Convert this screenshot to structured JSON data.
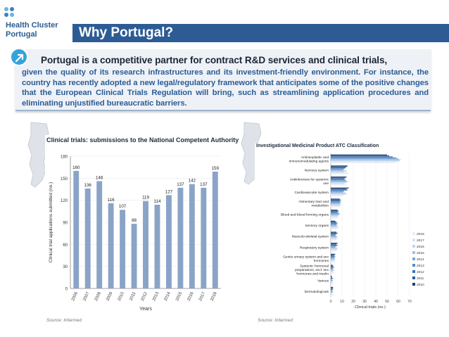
{
  "logo": {
    "line1": "Health Cluster",
    "line2": "Portugal"
  },
  "header": {
    "title": "Why Portugal?"
  },
  "intro": {
    "lead": "Portugal is a competitive partner for contract R&D services and clinical trials,",
    "body": "given the quality of its research infrastructures and its investment-friendly environment. For instance, the country has recently adopted a new legal/regulatory framework that anticipates some of the positive changes that the European Clinical Trials Regulation will bring, such as streamlining application procedures and eliminating unjustified bureaucratic barriers."
  },
  "colors": {
    "brand": "#2d5c94",
    "bar": "#8aa4c8",
    "accent": "#35a3d9"
  },
  "chart_data": [
    {
      "type": "bar",
      "title": "Clinical trials: submissions to the National Competent Authority",
      "xlabel": "Years",
      "ylabel": "Clinical trial applications submitted (no.)",
      "categories": [
        "2006",
        "2007",
        "2008",
        "2009",
        "2010",
        "2011",
        "2012",
        "2013",
        "2014",
        "2015",
        "2016",
        "2017",
        "2018"
      ],
      "values": [
        160,
        136,
        146,
        116,
        107,
        88,
        119,
        114,
        127,
        137,
        142,
        137,
        159
      ],
      "ylim": [
        0,
        180
      ],
      "yticks": [
        0,
        30,
        60,
        90,
        120,
        150,
        180
      ],
      "source": "Source: Infarmed"
    },
    {
      "type": "bar",
      "orientation": "horizontal",
      "title": "Investigational Medicinal Product ATC Classification",
      "xlabel": "Clinical trials (no.)",
      "categories": [
        "Antineoplastic and immunomodulating agents",
        "Nervous system",
        "Antiinfectives for systemic use",
        "Cardiovascular system",
        "Alimentary tract and metabolism",
        "Blood and blood forming organs",
        "Sensory organs",
        "Musculo-skeletal system",
        "Respiratory system",
        "Genito urinary system and sex hormones",
        "Systemic hormonal preparations, excl. sex hormones and insulin",
        "Various",
        "Dermatologicals"
      ],
      "series": [
        {
          "name": "2010",
          "values": [
            50,
            15,
            14,
            16,
            8,
            6,
            4,
            5,
            6,
            4,
            2,
            1,
            2
          ]
        },
        {
          "name": "2011",
          "values": [
            52,
            14,
            13,
            14,
            9,
            7,
            5,
            6,
            5,
            3,
            2,
            1,
            2
          ]
        },
        {
          "name": "2012",
          "values": [
            55,
            13,
            12,
            15,
            8,
            6,
            6,
            5,
            6,
            4,
            3,
            2,
            2
          ]
        },
        {
          "name": "2013",
          "values": [
            58,
            12,
            13,
            12,
            9,
            7,
            5,
            4,
            5,
            3,
            2,
            1,
            1
          ]
        },
        {
          "name": "2014",
          "values": [
            60,
            11,
            14,
            11,
            8,
            8,
            6,
            5,
            4,
            4,
            2,
            2,
            2
          ]
        },
        {
          "name": "2015",
          "values": [
            62,
            14,
            15,
            13,
            9,
            7,
            5,
            6,
            6,
            3,
            3,
            1,
            2
          ]
        },
        {
          "name": "2016",
          "values": [
            61,
            12,
            13,
            14,
            8,
            6,
            7,
            5,
            5,
            4,
            2,
            2,
            1
          ]
        },
        {
          "name": "2017",
          "values": [
            59,
            15,
            12,
            12,
            9,
            7,
            6,
            6,
            6,
            3,
            2,
            1,
            2
          ]
        },
        {
          "name": "2018",
          "values": [
            57,
            16,
            14,
            10,
            8,
            6,
            5,
            5,
            5,
            4,
            3,
            2,
            2
          ]
        }
      ],
      "legend": [
        "2018",
        "2017",
        "2016",
        "2015",
        "2014",
        "2013",
        "2012",
        "2011",
        "2010"
      ],
      "legend_position": "right",
      "xlim": [
        0,
        70
      ],
      "xticks": [
        0,
        10,
        20,
        30,
        40,
        50,
        60,
        70
      ],
      "source": "Source: Infarmed"
    }
  ]
}
